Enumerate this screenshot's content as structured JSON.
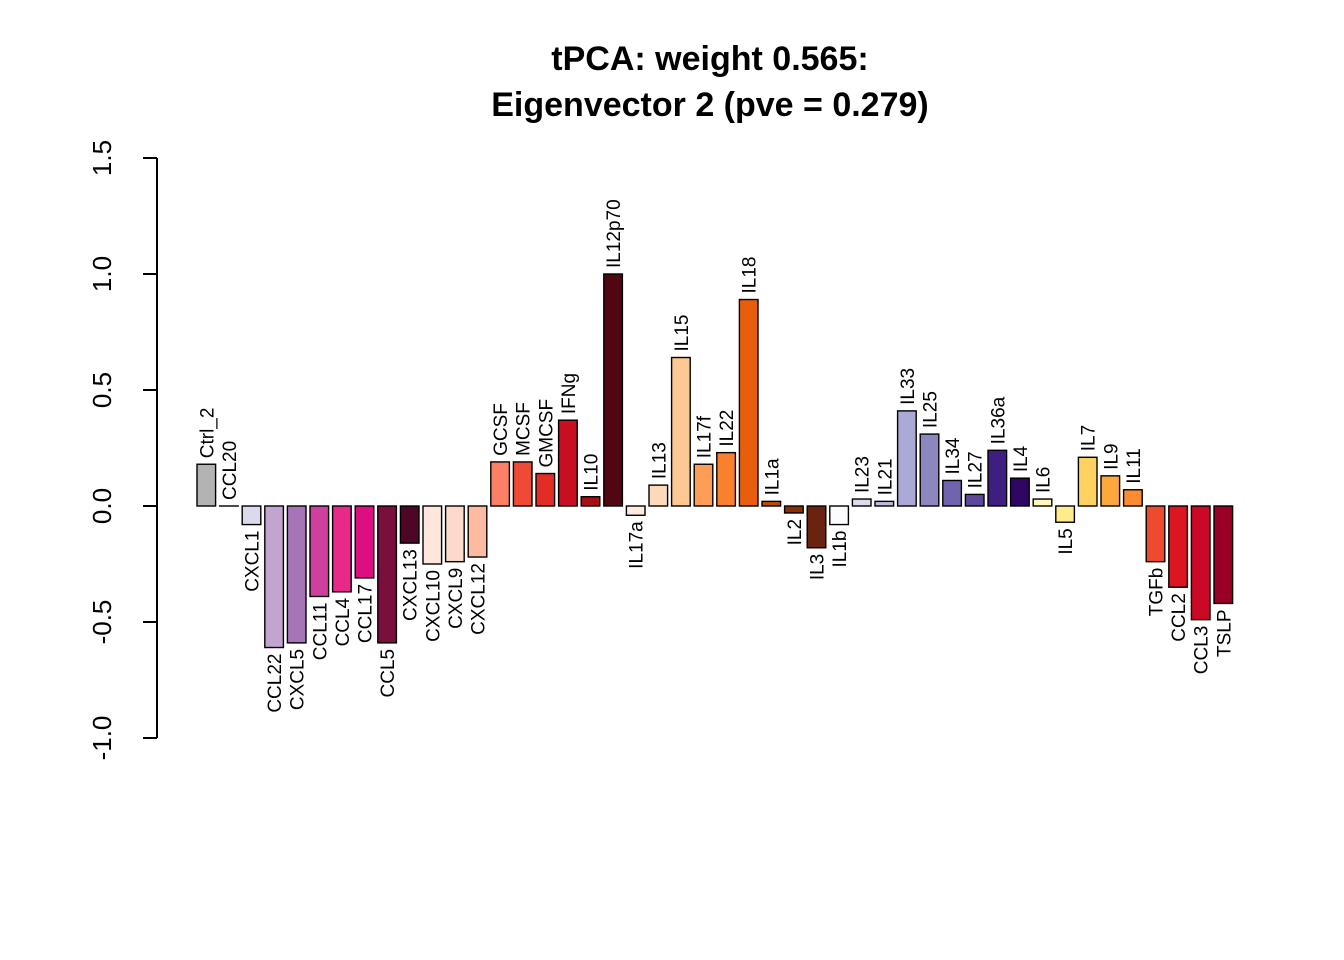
{
  "chart_data": {
    "type": "bar",
    "title_line1": "tPCA: weight 0.565:",
    "title_line2": "Eigenvector 2 (pve = 0.279)",
    "xlabel": "",
    "ylabel": "",
    "ylim": [
      -1.0,
      1.5
    ],
    "yticks": [
      -1.0,
      -0.5,
      0.0,
      0.5,
      1.0,
      1.5
    ],
    "ytick_labels": [
      "-1.0",
      "-0.5",
      "0.0",
      "0.5",
      "1.0",
      "1.5"
    ],
    "grid": false,
    "legend": "none",
    "categories": [
      "Ctrl_2",
      "CCL20",
      "CXCL1",
      "CCL22",
      "CXCL5",
      "CCL11",
      "CCL4",
      "CCL17",
      "CCL5",
      "CXCL13",
      "CXCL10",
      "CXCL9",
      "CXCL12",
      "GCSF",
      "MCSF",
      "GMCSF",
      "IFNg",
      "IL10",
      "IL12p70",
      "IL17a",
      "IL13",
      "IL15",
      "IL17f",
      "IL22",
      "IL18",
      "IL1a",
      "IL2",
      "IL3",
      "IL1b",
      "IL23",
      "IL21",
      "IL33",
      "IL25",
      "IL34",
      "IL27",
      "IL36a",
      "IL4",
      "IL6",
      "IL5",
      "IL7",
      "IL9",
      "IL11",
      "TGFb",
      "CCL2",
      "CCL3",
      "TSLP"
    ],
    "values": [
      0.18,
      0.0,
      -0.08,
      -0.61,
      -0.59,
      -0.39,
      -0.37,
      -0.31,
      -0.59,
      -0.16,
      -0.25,
      -0.24,
      -0.22,
      0.19,
      0.19,
      0.14,
      0.37,
      0.04,
      1.0,
      -0.04,
      0.09,
      0.64,
      0.18,
      0.23,
      0.89,
      0.02,
      -0.03,
      -0.18,
      -0.08,
      0.03,
      0.02,
      0.41,
      0.31,
      0.11,
      0.05,
      0.24,
      0.12,
      0.03,
      -0.07,
      0.21,
      0.13,
      0.07,
      -0.24,
      -0.35,
      -0.49,
      -0.42
    ],
    "colors": [
      "#B3B3B3",
      "#D9D9D9",
      "#DADAEB",
      "#C2A5CF",
      "#A675B8",
      "#CE3FA0",
      "#E7298A",
      "#DD0F80",
      "#7A0F3E",
      "#4D0625",
      "#FEE6DC",
      "#FDD9C9",
      "#FCBBA1",
      "#FB8066",
      "#EF4A36",
      "#E22D26",
      "#C80F22",
      "#A50F15",
      "#500613",
      "#FDEBDD",
      "#FDD9BB",
      "#FDC894",
      "#FD9D56",
      "#F9812D",
      "#E95E0D",
      "#C04A05",
      "#8A2F04",
      "#6A230E",
      "#FCFBFD",
      "#DCDCEC",
      "#BDBDDB",
      "#ABAAD5",
      "#8C87BF",
      "#6F64AD",
      "#5E489C",
      "#3F1E82",
      "#2F0663",
      "#FFF7BB",
      "#FFEB8C",
      "#FED160",
      "#FDA83C",
      "#FC8B32",
      "#EE4A2E",
      "#DC1520",
      "#CB0826",
      "#9A0026"
    ]
  }
}
